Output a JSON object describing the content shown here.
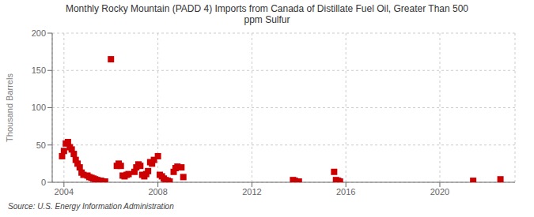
{
  "chart_data": {
    "type": "scatter",
    "title": "Monthly Rocky Mountain (PADD 4) Imports from Canada of Distillate Fuel Oil, Greater Than 500\nppm Sulfur",
    "ylabel": "Thousand Barrels",
    "annotations": [
      "Source: U.S. Energy Information Administration"
    ],
    "x": [
      2003.92,
      2004.0,
      2004.08,
      2004.17,
      2004.25,
      2004.33,
      2004.42,
      2004.5,
      2004.58,
      2004.67,
      2004.75,
      2004.83,
      2005.0,
      2005.08,
      2005.17,
      2005.25,
      2005.33,
      2005.42,
      2005.5,
      2005.58,
      2005.67,
      2005.75,
      2006.0,
      2006.25,
      2006.33,
      2006.42,
      2006.5,
      2006.58,
      2006.67,
      2006.75,
      2007.0,
      2007.08,
      2007.17,
      2007.25,
      2007.33,
      2007.42,
      2007.5,
      2007.58,
      2007.67,
      2007.75,
      2007.83,
      2008.0,
      2008.08,
      2008.17,
      2008.25,
      2008.33,
      2008.42,
      2008.5,
      2008.67,
      2008.75,
      2008.83,
      2009.0,
      2009.08,
      2013.75,
      2013.83,
      2014.0,
      2015.5,
      2015.58,
      2015.67,
      2015.75,
      2021.42,
      2022.58
    ],
    "values": [
      35,
      42,
      52,
      54,
      47,
      44,
      38,
      30,
      25,
      20,
      13,
      10,
      9,
      7,
      6,
      5,
      4,
      3,
      2,
      2,
      1,
      1,
      165,
      22,
      25,
      22,
      9,
      8,
      10,
      11,
      14,
      20,
      24,
      22,
      10,
      8,
      11,
      15,
      27,
      25,
      30,
      35,
      10,
      8,
      5,
      3,
      2,
      1,
      14,
      19,
      21,
      20,
      7,
      3,
      2,
      1,
      14,
      3,
      2,
      1,
      2,
      4
    ],
    "color": "#cc0000",
    "marker": "square",
    "xlim": [
      2003.5,
      2023.2
    ],
    "xticks": [
      2004,
      2008,
      2012,
      2016,
      2020
    ],
    "ylim": [
      0,
      200
    ],
    "yticks": [
      0,
      50,
      100,
      150,
      200
    ],
    "grid": true
  }
}
